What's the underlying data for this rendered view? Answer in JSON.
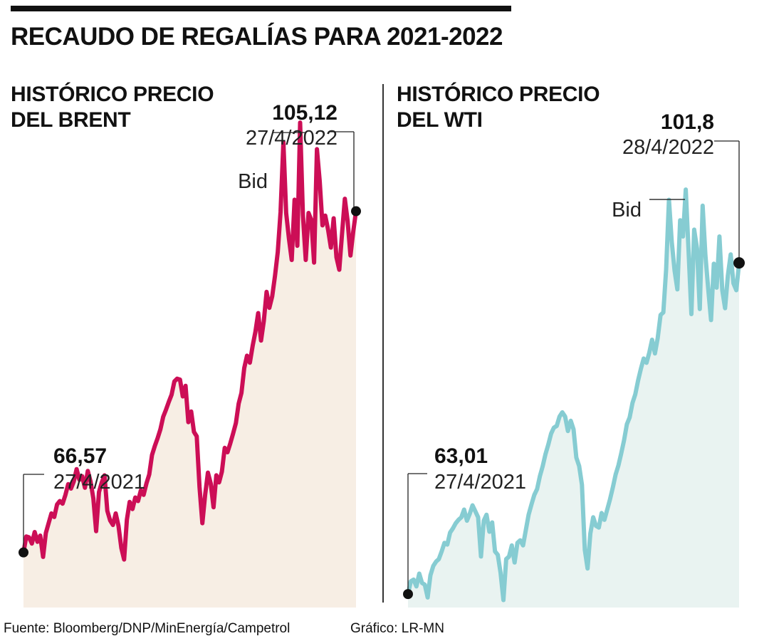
{
  "title": "RECAUDO DE REGALÍAS PARA 2021-2022",
  "colors": {
    "brent": "#cc0e56",
    "brent_fill": "#f7eee4",
    "wti": "#86ccd2",
    "wti_fill": "#e9f3f1"
  },
  "chart_data": [
    {
      "type": "area",
      "title_line1": "HISTÓRICO PRECIO",
      "title_line2": "DEL BRENT",
      "x_start": "27/4/2021",
      "x_end": "27/4/2022",
      "ylim": [
        55,
        118
      ],
      "start": {
        "value": "66,57",
        "date": "27/4/2021"
      },
      "end": {
        "value": "105,12",
        "date": "27/4/2022"
      },
      "bid_label": "Bid",
      "values": [
        66.6,
        68.4,
        68.3,
        67.6,
        68.9,
        67.8,
        68.5,
        66.1,
        68.8,
        69.9,
        71.0,
        70.6,
        72.0,
        72.4,
        72.1,
        73.1,
        74.3,
        73.8,
        74.6,
        76.0,
        74.8,
        75.2,
        73.9,
        75.8,
        74.6,
        72.7,
        69.0,
        73.4,
        74.5,
        75.3,
        71.3,
        70.2,
        69.7,
        71.0,
        69.6,
        67.1,
        65.8,
        70.3,
        72.3,
        71.5,
        72.8,
        72.4,
        73.6,
        73.1,
        74.4,
        75.4,
        77.6,
        78.6,
        79.5,
        80.5,
        81.9,
        82.7,
        83.6,
        84.4,
        85.9,
        86.2,
        86.1,
        84.2,
        85.4,
        81.3,
        82.5,
        80.2,
        79.7,
        74.0,
        69.9,
        73.1,
        75.6,
        74.4,
        71.7,
        75.3,
        74.5,
        75.7,
        78.4,
        77.9,
        78.9,
        80.0,
        81.2,
        83.4,
        84.6,
        87.4,
        88.8,
        88.0,
        89.9,
        91.5,
        93.6,
        90.5,
        92.7,
        96.0,
        94.2,
        95.5,
        97.8,
        100.5,
        105.0,
        112.9,
        104.9,
        102.0,
        99.6,
        106.4,
        101.2,
        115.1,
        104.7,
        99.6,
        104.9,
        104.1,
        99.3,
        112.1,
        108.5,
        103.5,
        104.6,
        103.0,
        101.0,
        104.3,
        99.9,
        98.5,
        102.6,
        106.5,
        104.0,
        100.1,
        102.8,
        105.1
      ]
    },
    {
      "type": "area",
      "title_line1": "HISTÓRICO PRECIO",
      "title_line2": "DEL WTI",
      "x_start": "27/4/2021",
      "x_end": "28/4/2022",
      "ylim": [
        55,
        118
      ],
      "start": {
        "value": "63,01",
        "date": "27/4/2021"
      },
      "end": {
        "value": "101,8",
        "date": "28/4/2022"
      },
      "bid_label": "Bid",
      "values": [
        63.0,
        64.5,
        64.7,
        63.9,
        65.4,
        64.3,
        64.1,
        62.6,
        65.2,
        66.3,
        66.8,
        67.1,
        68.0,
        69.0,
        68.8,
        70.2,
        70.7,
        71.3,
        71.7,
        72.0,
        72.9,
        71.6,
        72.4,
        73.4,
        72.7,
        72.0,
        67.4,
        71.6,
        72.3,
        70.3,
        71.4,
        68.0,
        67.6,
        65.5,
        62.3,
        67.1,
        67.4,
        68.7,
        66.7,
        69.0,
        69.3,
        68.7,
        70.5,
        72.3,
        73.5,
        74.6,
        75.3,
        76.8,
        78.0,
        79.4,
        80.5,
        81.8,
        82.5,
        82.7,
        83.8,
        84.3,
        83.8,
        82.1,
        83.3,
        82.3,
        79.0,
        78.0,
        75.8,
        68.2,
        66.0,
        70.1,
        72.0,
        71.0,
        70.8,
        72.5,
        71.7,
        72.9,
        74.1,
        75.5,
        77.0,
        78.1,
        79.5,
        81.0,
        82.9,
        83.7,
        85.4,
        86.4,
        88.0,
        89.4,
        90.6,
        90.1,
        91.3,
        92.8,
        91.2,
        93.0,
        95.7,
        96.0,
        101.0,
        109.2,
        104.3,
        100.9,
        98.7,
        106.8,
        104.9,
        110.4,
        103.1,
        95.8,
        105.7,
        103.5,
        96.4,
        108.5,
        102.7,
        98.7,
        95.1,
        101.7,
        98.9,
        104.9,
        98.6,
        96.5,
        100.3,
        102.8,
        99.4,
        98.6,
        101.8
      ]
    }
  ],
  "source": "Fuente: Bloomberg/DNP/MinEnergía/Campetrol",
  "credit": "Gráfico: LR-MN"
}
